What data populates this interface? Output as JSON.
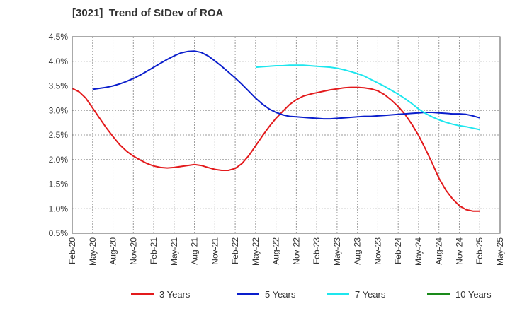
{
  "chart_data": {
    "type": "line",
    "title": "[3021]  Trend of StDev of ROA",
    "xlabel": "",
    "ylabel": "",
    "x_ticks": [
      "Feb-20",
      "May-20",
      "Aug-20",
      "Nov-20",
      "Feb-21",
      "May-21",
      "Aug-21",
      "Nov-21",
      "Feb-22",
      "May-22",
      "Aug-22",
      "Nov-22",
      "Feb-23",
      "May-23",
      "Aug-23",
      "Nov-23",
      "Feb-24",
      "May-24",
      "Aug-24",
      "Nov-24",
      "Feb-25",
      "May-25"
    ],
    "y_ticks": [
      "0.5%",
      "1.0%",
      "1.5%",
      "2.0%",
      "2.5%",
      "3.0%",
      "3.5%",
      "4.0%",
      "4.5%"
    ],
    "ylim": [
      0.5,
      4.5
    ],
    "y_unit": "%",
    "grid": true,
    "legend_position": "bottom",
    "series": [
      {
        "name": "3 Years",
        "color": "#e31a1c",
        "points": [
          [
            "Feb-20",
            3.45
          ],
          [
            "Mar-20",
            3.38
          ],
          [
            "Apr-20",
            3.25
          ],
          [
            "May-20",
            3.05
          ],
          [
            "Jun-20",
            2.85
          ],
          [
            "Jul-20",
            2.65
          ],
          [
            "Aug-20",
            2.47
          ],
          [
            "Sep-20",
            2.3
          ],
          [
            "Oct-20",
            2.17
          ],
          [
            "Nov-20",
            2.07
          ],
          [
            "Dec-20",
            1.99
          ],
          [
            "Jan-21",
            1.92
          ],
          [
            "Feb-21",
            1.87
          ],
          [
            "Mar-21",
            1.84
          ],
          [
            "Apr-21",
            1.83
          ],
          [
            "May-21",
            1.84
          ],
          [
            "Jun-21",
            1.86
          ],
          [
            "Jul-21",
            1.88
          ],
          [
            "Aug-21",
            1.9
          ],
          [
            "Sep-21",
            1.88
          ],
          [
            "Oct-21",
            1.84
          ],
          [
            "Nov-21",
            1.8
          ],
          [
            "Dec-21",
            1.78
          ],
          [
            "Jan-22",
            1.78
          ],
          [
            "Feb-22",
            1.82
          ],
          [
            "Mar-22",
            1.92
          ],
          [
            "Apr-22",
            2.08
          ],
          [
            "May-22",
            2.28
          ],
          [
            "Jun-22",
            2.48
          ],
          [
            "Jul-22",
            2.67
          ],
          [
            "Aug-22",
            2.84
          ],
          [
            "Sep-22",
            2.98
          ],
          [
            "Oct-22",
            3.12
          ],
          [
            "Nov-22",
            3.22
          ],
          [
            "Dec-22",
            3.29
          ],
          [
            "Jan-23",
            3.33
          ],
          [
            "Feb-23",
            3.36
          ],
          [
            "Mar-23",
            3.39
          ],
          [
            "Apr-23",
            3.42
          ],
          [
            "May-23",
            3.44
          ],
          [
            "Jun-23",
            3.46
          ],
          [
            "Jul-23",
            3.47
          ],
          [
            "Aug-23",
            3.47
          ],
          [
            "Sep-23",
            3.46
          ],
          [
            "Oct-23",
            3.44
          ],
          [
            "Nov-23",
            3.4
          ],
          [
            "Dec-23",
            3.32
          ],
          [
            "Jan-24",
            3.21
          ],
          [
            "Feb-24",
            3.08
          ],
          [
            "Mar-24",
            2.92
          ],
          [
            "Apr-24",
            2.72
          ],
          [
            "May-24",
            2.49
          ],
          [
            "Jun-24",
            2.22
          ],
          [
            "Jul-24",
            1.93
          ],
          [
            "Aug-24",
            1.62
          ],
          [
            "Sep-24",
            1.38
          ],
          [
            "Oct-24",
            1.2
          ],
          [
            "Nov-24",
            1.06
          ],
          [
            "Dec-24",
            0.98
          ],
          [
            "Jan-25",
            0.95
          ],
          [
            "Feb-25",
            0.95
          ]
        ]
      },
      {
        "name": "5 Years",
        "color": "#0a1ecc",
        "points": [
          [
            "Feb-20",
            null
          ],
          [
            "May-20",
            3.43
          ],
          [
            "Jun-20",
            3.45
          ],
          [
            "Jul-20",
            3.47
          ],
          [
            "Aug-20",
            3.5
          ],
          [
            "Sep-20",
            3.54
          ],
          [
            "Oct-20",
            3.59
          ],
          [
            "Nov-20",
            3.65
          ],
          [
            "Dec-20",
            3.72
          ],
          [
            "Jan-21",
            3.8
          ],
          [
            "Feb-21",
            3.88
          ],
          [
            "Mar-21",
            3.96
          ],
          [
            "Apr-21",
            4.04
          ],
          [
            "May-21",
            4.11
          ],
          [
            "Jun-21",
            4.17
          ],
          [
            "Jul-21",
            4.2
          ],
          [
            "Aug-21",
            4.21
          ],
          [
            "Sep-21",
            4.18
          ],
          [
            "Oct-21",
            4.11
          ],
          [
            "Nov-21",
            4.01
          ],
          [
            "Dec-21",
            3.9
          ],
          [
            "Jan-22",
            3.78
          ],
          [
            "Feb-22",
            3.66
          ],
          [
            "Mar-22",
            3.53
          ],
          [
            "Apr-22",
            3.39
          ],
          [
            "May-22",
            3.25
          ],
          [
            "Jun-22",
            3.13
          ],
          [
            "Jul-22",
            3.03
          ],
          [
            "Aug-22",
            2.96
          ],
          [
            "Sep-22",
            2.91
          ],
          [
            "Oct-22",
            2.88
          ],
          [
            "Nov-22",
            2.87
          ],
          [
            "Dec-22",
            2.86
          ],
          [
            "Jan-23",
            2.85
          ],
          [
            "Feb-23",
            2.84
          ],
          [
            "Mar-23",
            2.83
          ],
          [
            "Apr-23",
            2.83
          ],
          [
            "May-23",
            2.84
          ],
          [
            "Jun-23",
            2.85
          ],
          [
            "Jul-23",
            2.86
          ],
          [
            "Aug-23",
            2.87
          ],
          [
            "Sep-23",
            2.88
          ],
          [
            "Oct-23",
            2.88
          ],
          [
            "Nov-23",
            2.89
          ],
          [
            "Dec-23",
            2.9
          ],
          [
            "Jan-24",
            2.91
          ],
          [
            "Feb-24",
            2.92
          ],
          [
            "Mar-24",
            2.93
          ],
          [
            "Apr-24",
            2.94
          ],
          [
            "May-24",
            2.95
          ],
          [
            "Jun-24",
            2.96
          ],
          [
            "Jul-24",
            2.96
          ],
          [
            "Aug-24",
            2.95
          ],
          [
            "Sep-24",
            2.94
          ],
          [
            "Oct-24",
            2.93
          ],
          [
            "Nov-24",
            2.93
          ],
          [
            "Dec-24",
            2.92
          ],
          [
            "Jan-25",
            2.89
          ],
          [
            "Feb-25",
            2.85
          ]
        ]
      },
      {
        "name": "7 Years",
        "color": "#1ee6ee",
        "points": [
          [
            "May-22",
            3.88
          ],
          [
            "Jun-22",
            3.89
          ],
          [
            "Jul-22",
            3.9
          ],
          [
            "Aug-22",
            3.91
          ],
          [
            "Sep-22",
            3.91
          ],
          [
            "Oct-22",
            3.92
          ],
          [
            "Nov-22",
            3.92
          ],
          [
            "Dec-22",
            3.92
          ],
          [
            "Jan-23",
            3.91
          ],
          [
            "Feb-23",
            3.9
          ],
          [
            "Mar-23",
            3.89
          ],
          [
            "Apr-23",
            3.88
          ],
          [
            "May-23",
            3.86
          ],
          [
            "Jun-23",
            3.83
          ],
          [
            "Jul-23",
            3.79
          ],
          [
            "Aug-23",
            3.75
          ],
          [
            "Sep-23",
            3.7
          ],
          [
            "Oct-23",
            3.63
          ],
          [
            "Nov-23",
            3.56
          ],
          [
            "Dec-23",
            3.49
          ],
          [
            "Jan-24",
            3.41
          ],
          [
            "Feb-24",
            3.33
          ],
          [
            "Mar-24",
            3.24
          ],
          [
            "Apr-24",
            3.14
          ],
          [
            "May-24",
            3.03
          ],
          [
            "Jun-24",
            2.94
          ],
          [
            "Jul-24",
            2.87
          ],
          [
            "Aug-24",
            2.81
          ],
          [
            "Sep-24",
            2.76
          ],
          [
            "Oct-24",
            2.72
          ],
          [
            "Nov-24",
            2.69
          ],
          [
            "Dec-24",
            2.67
          ],
          [
            "Jan-25",
            2.64
          ],
          [
            "Feb-25",
            2.61
          ]
        ]
      },
      {
        "name": "10 Years",
        "color": "#1a8a1a",
        "points": []
      }
    ]
  }
}
